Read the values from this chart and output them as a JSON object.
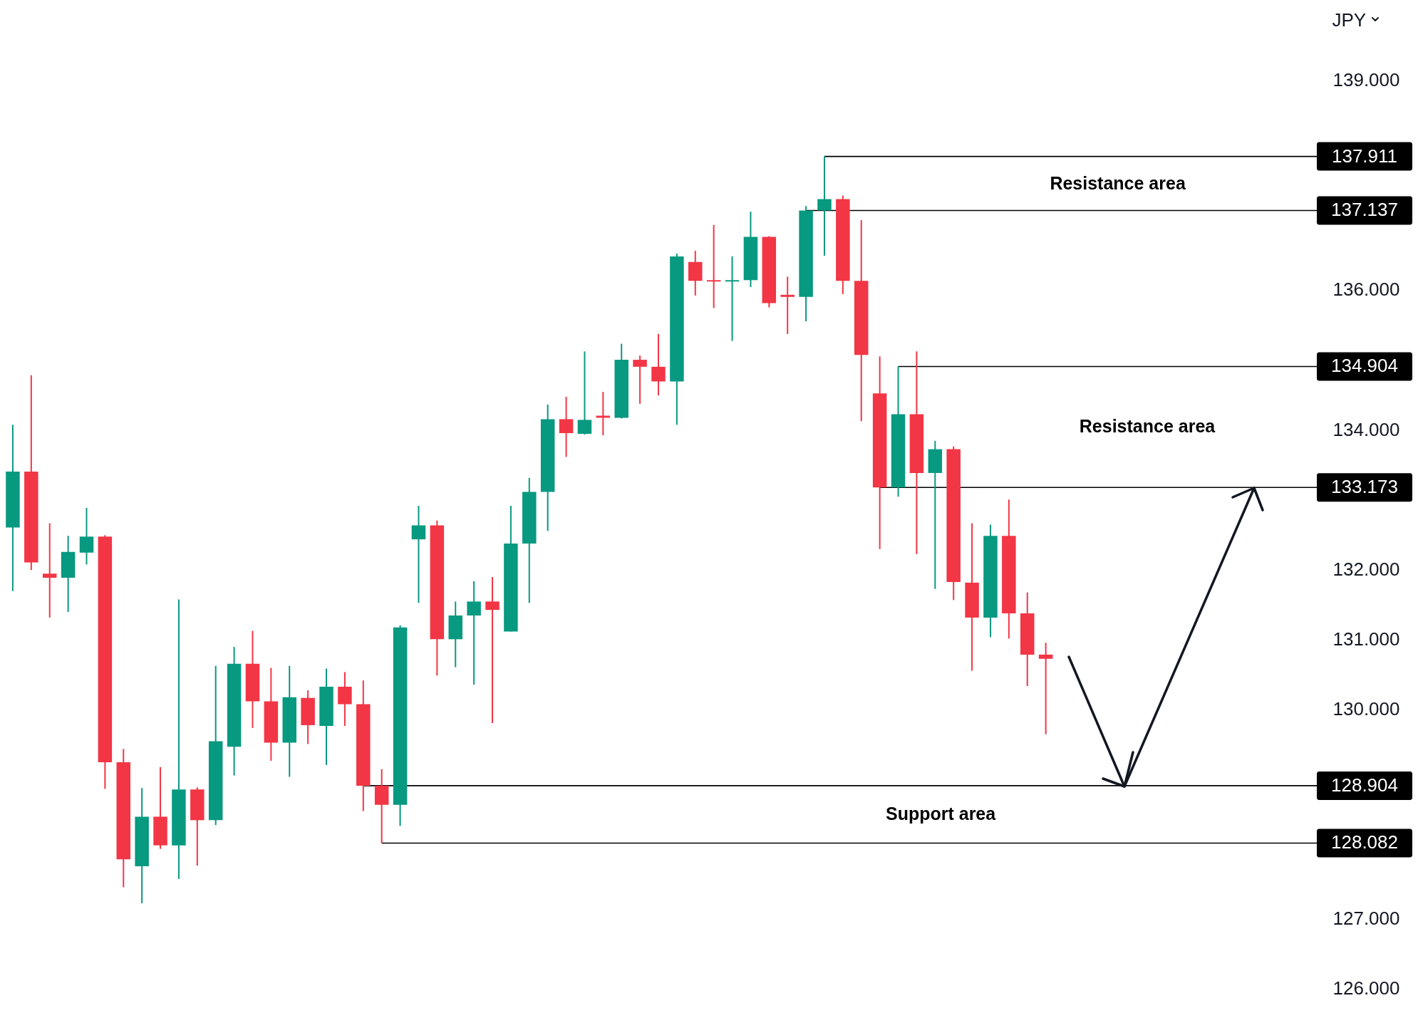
{
  "chart_data": {
    "type": "candlestick",
    "ylabel": "JPY",
    "categories": [
      null,
      null,
      null,
      null,
      null,
      null,
      null,
      null,
      null,
      null,
      null,
      null,
      null,
      null,
      null,
      null,
      null,
      null,
      null,
      null,
      null,
      null,
      null,
      null,
      null,
      null,
      null,
      null,
      null,
      null,
      null,
      null,
      null,
      null,
      null,
      null,
      null,
      null,
      null,
      null,
      null,
      null,
      null,
      null,
      null,
      null,
      null,
      null,
      null,
      null,
      null,
      null,
      null,
      null,
      null,
      null,
      null,
      null,
      null,
      null,
      null,
      null,
      null,
      null,
      null,
      null,
      null,
      null,
      null,
      null,
      null
    ],
    "ohlc": [
      [
        132.6,
        134.07,
        131.69,
        133.4
      ],
      [
        133.4,
        134.78,
        131.99,
        132.1
      ],
      [
        131.94,
        132.66,
        131.31,
        131.88
      ],
      [
        131.88,
        132.48,
        131.39,
        132.25
      ],
      [
        132.24,
        132.88,
        132.07,
        132.47
      ],
      [
        132.47,
        132.49,
        128.86,
        129.24
      ],
      [
        129.24,
        129.43,
        127.45,
        127.85
      ],
      [
        127.75,
        128.87,
        127.22,
        128.46
      ],
      [
        128.46,
        129.17,
        128.0,
        128.05
      ],
      [
        128.05,
        131.57,
        127.57,
        128.85
      ],
      [
        128.85,
        128.88,
        127.76,
        128.41
      ],
      [
        128.41,
        130.62,
        128.34,
        129.54
      ],
      [
        129.46,
        130.89,
        129.05,
        130.65
      ],
      [
        130.65,
        131.12,
        129.73,
        130.11
      ],
      [
        130.11,
        130.59,
        129.26,
        129.52
      ],
      [
        129.52,
        130.62,
        129.03,
        130.17
      ],
      [
        130.16,
        130.27,
        129.5,
        129.77
      ],
      [
        129.76,
        130.58,
        129.2,
        130.32
      ],
      [
        130.32,
        130.53,
        129.76,
        130.07
      ],
      [
        130.07,
        130.41,
        128.54,
        128.904
      ],
      [
        128.904,
        129.14,
        128.082,
        128.63
      ],
      [
        128.63,
        131.2,
        128.33,
        131.17
      ],
      [
        132.43,
        132.91,
        131.52,
        132.63
      ],
      [
        132.63,
        132.7,
        130.48,
        131.0
      ],
      [
        131.0,
        131.54,
        130.6,
        131.34
      ],
      [
        131.34,
        131.83,
        130.35,
        131.54
      ],
      [
        131.54,
        131.89,
        129.8,
        131.42
      ],
      [
        131.11,
        132.91,
        131.11,
        132.37
      ],
      [
        132.37,
        133.31,
        131.52,
        133.11
      ],
      [
        133.11,
        134.36,
        132.55,
        134.15
      ],
      [
        134.15,
        134.47,
        133.61,
        133.95
      ],
      [
        133.94,
        135.12,
        133.93,
        134.14
      ],
      [
        134.2,
        134.54,
        133.92,
        134.17
      ],
      [
        134.17,
        135.23,
        134.16,
        135.0
      ],
      [
        135.0,
        135.06,
        134.37,
        134.9
      ],
      [
        134.9,
        135.37,
        134.49,
        134.69
      ],
      [
        134.69,
        136.52,
        134.07,
        136.48
      ],
      [
        136.4,
        136.56,
        135.92,
        136.13
      ],
      [
        136.14,
        136.93,
        135.74,
        136.12
      ],
      [
        136.12,
        136.48,
        135.27,
        136.14
      ],
      [
        136.14,
        137.12,
        136.04,
        136.76
      ],
      [
        136.76,
        136.77,
        135.75,
        135.81
      ],
      [
        135.93,
        136.19,
        135.37,
        135.9
      ],
      [
        135.9,
        137.2,
        135.55,
        137.137
      ],
      [
        137.137,
        137.911,
        136.49,
        137.3
      ],
      [
        137.3,
        137.35,
        135.94,
        136.13
      ],
      [
        136.13,
        137.0,
        134.12,
        135.07
      ],
      [
        134.52,
        135.05,
        132.29,
        133.173
      ],
      [
        133.173,
        134.904,
        133.04,
        134.22
      ],
      [
        134.22,
        135.12,
        132.22,
        133.38
      ],
      [
        133.38,
        133.84,
        131.72,
        133.72
      ],
      [
        133.72,
        133.76,
        131.56,
        131.82
      ],
      [
        131.81,
        132.66,
        130.55,
        131.31
      ],
      [
        131.31,
        132.64,
        131.03,
        132.48
      ],
      [
        132.48,
        133.0,
        131.01,
        131.37
      ],
      [
        131.37,
        131.67,
        130.33,
        130.78
      ],
      [
        130.78,
        130.95,
        129.64,
        130.72
      ],
      null,
      null,
      null,
      null,
      null,
      null,
      null,
      null,
      null,
      null,
      null,
      null,
      null,
      null
    ],
    "colors": [
      "#089981",
      "#f23645",
      "#f23645",
      "#089981",
      "#089981",
      "#f23645",
      "#f23645",
      "#089981",
      "#f23645",
      "#089981",
      "#f23645",
      "#089981",
      "#089981",
      "#f23645",
      "#f23645",
      "#089981",
      "#f23645",
      "#089981",
      "#f23645",
      "#f23645",
      "#f23645",
      "#089981",
      "#089981",
      "#f23645",
      "#089981",
      "#089981",
      "#f23645",
      "#089981",
      "#089981",
      "#089981",
      "#f23645",
      "#089981",
      "#f23645",
      "#089981",
      "#f23645",
      "#f23645",
      "#089981",
      "#f23645",
      "#f23645",
      "#089981",
      "#089981",
      "#f23645",
      "#f23645",
      "#089981",
      "#089981",
      "#f23645",
      "#f23645",
      "#f23645",
      "#089981",
      "#f23645",
      "#089981",
      "#f23645",
      "#f23645",
      "#089981",
      "#f23645",
      "#f23645",
      "#f23645",
      null,
      null,
      null,
      null,
      null,
      null,
      null,
      null,
      null,
      null,
      null,
      null,
      null,
      null
    ],
    "ylim": [
      125.65,
      140.15
    ],
    "yticks": [
      {
        "value": 126,
        "label": "126.000"
      },
      {
        "value": 127,
        "label": "127.000"
      },
      {
        "value": 130,
        "label": "130.000"
      },
      {
        "value": 131,
        "label": "131.000"
      },
      {
        "value": 132,
        "label": "132.000"
      },
      {
        "value": 134,
        "label": "134.000"
      },
      {
        "value": 136,
        "label": "136.000"
      },
      {
        "value": 139,
        "label": "139.000"
      }
    ],
    "tick_labels": "y",
    "ref_lines": [
      {
        "axis": "y",
        "value": 137.911,
        "label": "137.911",
        "color": "#000000"
      },
      {
        "axis": "y",
        "value": 137.137,
        "label": "137.137",
        "color": "#000000"
      },
      {
        "axis": "y",
        "value": 134.904,
        "label": "134.904",
        "color": "#000000"
      },
      {
        "axis": "y",
        "value": 133.173,
        "label": "133.173",
        "color": "#000000"
      },
      {
        "axis": "y",
        "value": 128.904,
        "label": "128.904",
        "color": "#000000"
      },
      {
        "axis": "y",
        "value": 128.082,
        "label": "128.082",
        "color": "#000000"
      }
    ],
    "annotations": [
      "Resistance area",
      "Resistance area",
      "Support area"
    ]
  }
}
